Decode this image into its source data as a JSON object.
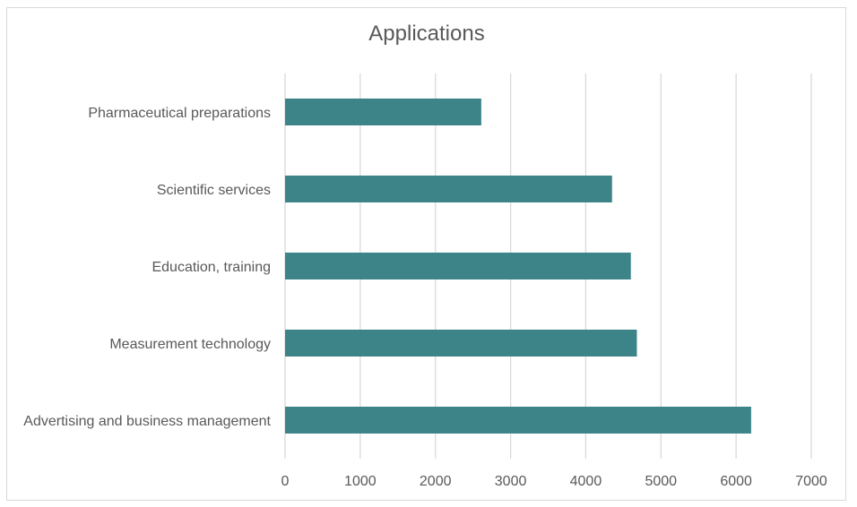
{
  "chart_data": {
    "type": "bar",
    "orientation": "horizontal",
    "title": "Applications",
    "categories": [
      "Advertising and business management",
      "Measurement technology",
      "Education, training",
      "Scientific services",
      "Pharmaceutical preparations"
    ],
    "values": [
      6200,
      4680,
      4600,
      4350,
      2610
    ],
    "xlim": [
      0,
      7000
    ],
    "xticks": [
      0,
      1000,
      2000,
      3000,
      4000,
      5000,
      6000,
      7000
    ],
    "xlabel": "",
    "ylabel": "",
    "grid": "vertical",
    "legend": "none",
    "bar_color": "#3d8489",
    "grid_color": "#d9d9d9"
  }
}
